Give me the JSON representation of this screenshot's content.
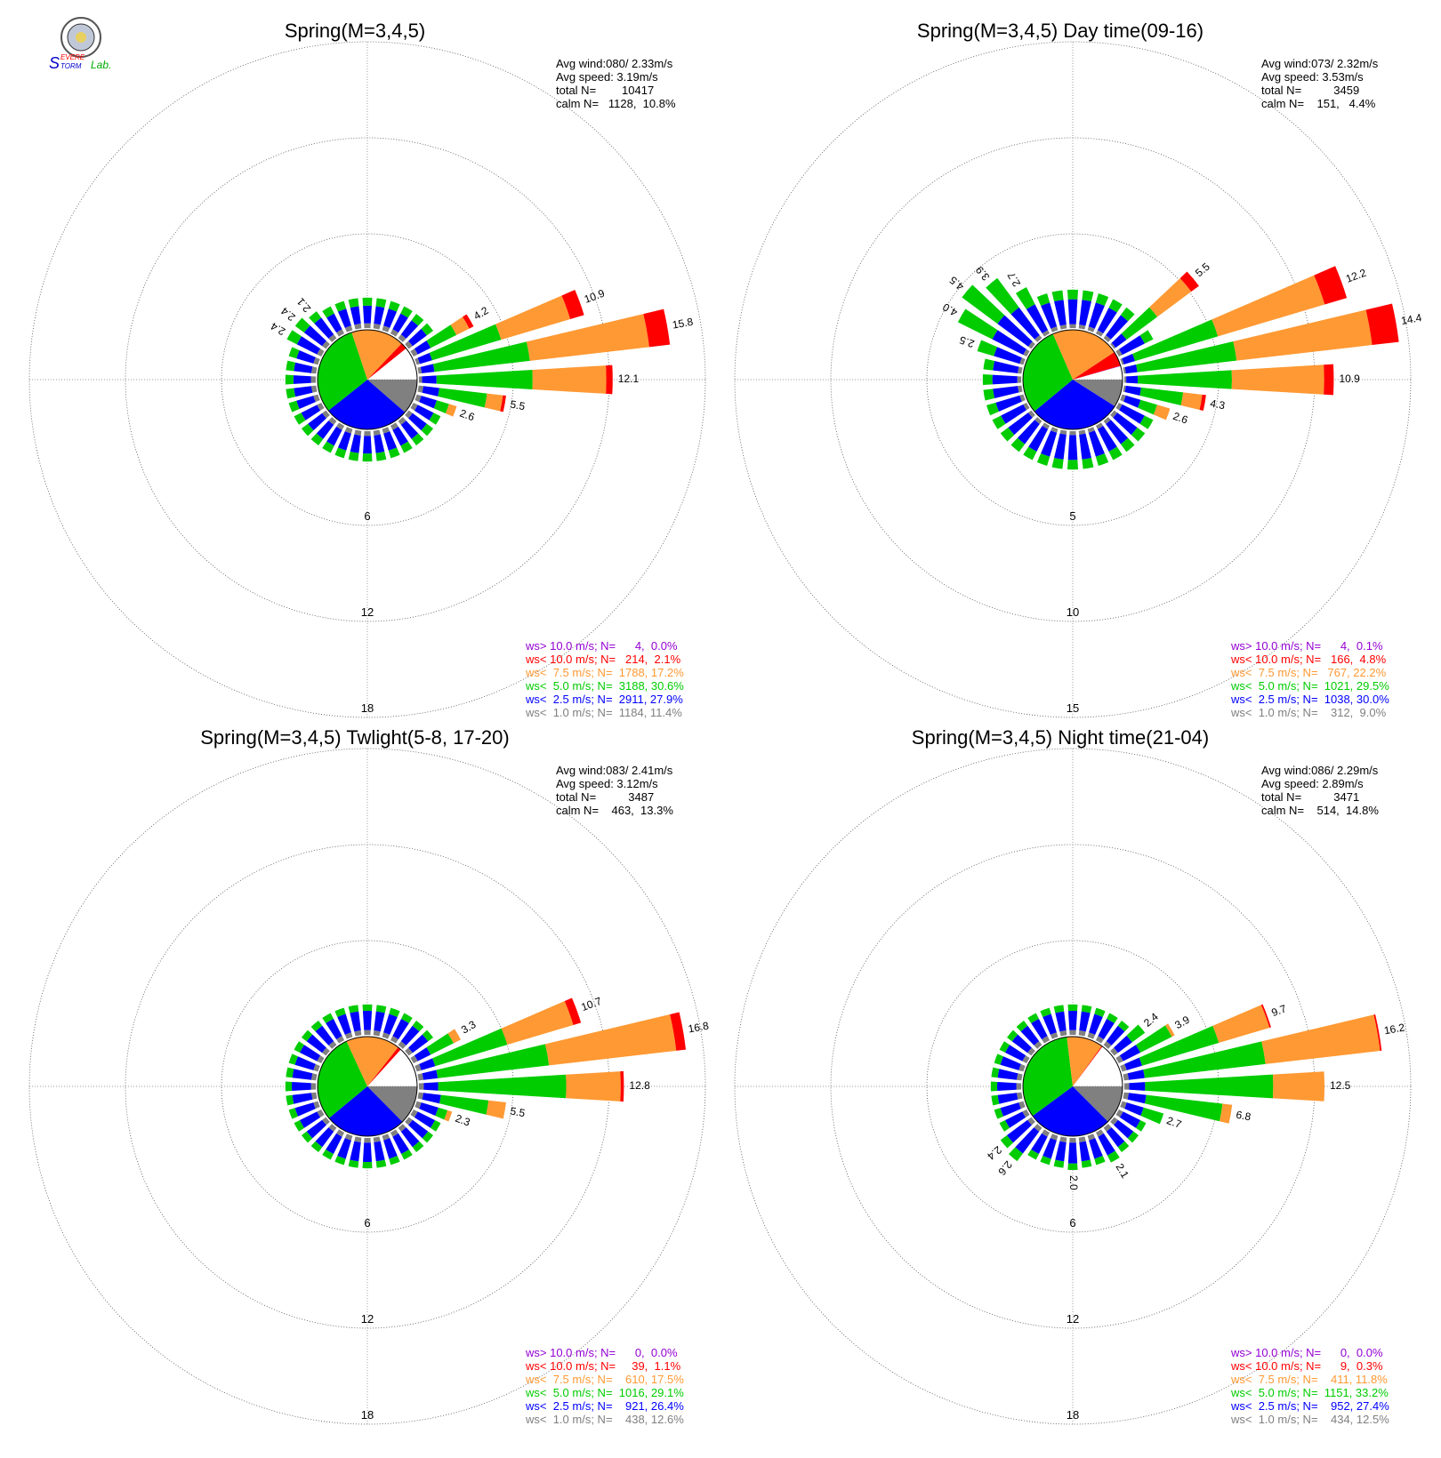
{
  "logo": {
    "text_s": "S",
    "text_evere": "EVERE",
    "text_torm": "TORM",
    "text_lab": "Lab."
  },
  "colors": {
    "gt10": "#9400d3",
    "lt10": "#ff0000",
    "lt75": "#ff9933",
    "lt50": "#00cc00",
    "lt25": "#0000ff",
    "lt10calm": "#808080",
    "calm_pie_bg": "#ffffff"
  },
  "chart_data": [
    {
      "type": "wind-rose",
      "title": "Spring(M=3,4,5)",
      "stats": [
        "Avg wind:080/ 2.33m/s",
        "Avg speed: 3.19m/s",
        "total N=        10417",
        "calm N=   1128,  10.8%"
      ],
      "ring_labels": [
        "6",
        "12",
        "18"
      ],
      "ring_max": 18,
      "pie": [
        11.4,
        27.9,
        30.6,
        17.2,
        2.1,
        0.0
      ],
      "legend": [
        {
          "label": "ws> 10.0 m/s; N=      4,  0.0%",
          "color": "gt10"
        },
        {
          "label": "ws< 10.0 m/s; N=   214,  2.1%",
          "color": "lt10"
        },
        {
          "label": "ws<  7.5 m/s; N=  1788, 17.2%",
          "color": "lt75"
        },
        {
          "label": "ws<  5.0 m/s; N=  3188, 30.6%",
          "color": "lt50"
        },
        {
          "label": "ws<  2.5 m/s; N=  2911, 27.9%",
          "color": "lt25"
        },
        {
          "label": "ws<  1.0 m/s; N=  1184, 11.4%",
          "color": "lt10calm"
        }
      ],
      "petals": [
        {
          "dir": 60,
          "total": 4.2,
          "label": "4.2",
          "parts": [
            0.3,
            0.9,
            1.8,
            0.9,
            0.3
          ]
        },
        {
          "dir": 70,
          "total": 10.9,
          "label": "10.9",
          "parts": [
            0.2,
            0.8,
            4.5,
            4.5,
            0.9
          ]
        },
        {
          "dir": 80,
          "total": 15.8,
          "label": "15.8",
          "parts": [
            0.2,
            0.8,
            6.0,
            7.5,
            1.3
          ]
        },
        {
          "dir": 90,
          "total": 12.1,
          "label": "12.1",
          "parts": [
            0.2,
            0.9,
            6.0,
            4.6,
            0.4
          ]
        },
        {
          "dir": 100,
          "total": 5.5,
          "label": "5.5",
          "parts": [
            0.3,
            1.0,
            3.0,
            1.0,
            0.2
          ]
        },
        {
          "dir": 110,
          "total": 2.6,
          "label": "2.6",
          "parts": [
            0.3,
            1.0,
            0.8,
            0.5
          ]
        },
        {
          "dir": 300,
          "total": 2.4,
          "label": "2.4",
          "parts": [
            0.3,
            1.4,
            0.7
          ]
        },
        {
          "dir": 310,
          "total": 2.4,
          "label": "2.4",
          "parts": [
            0.3,
            1.4,
            0.7
          ]
        },
        {
          "dir": 320,
          "total": 2.1,
          "label": "2.1",
          "parts": [
            0.3,
            1.3,
            0.5
          ]
        }
      ],
      "base_petal": [
        0.3,
        1.1,
        0.5
      ]
    },
    {
      "type": "wind-rose",
      "title": "Spring(M=3,4,5) Day time(09-16)",
      "stats": [
        "Avg wind:073/ 2.32m/s",
        "Avg speed: 3.53m/s",
        "total N=          3459",
        "calm N=    151,   4.4%"
      ],
      "ring_labels": [
        "5",
        "10",
        "15"
      ],
      "ring_max": 15,
      "pie": [
        9.0,
        30.0,
        29.5,
        22.2,
        4.8,
        0.1
      ],
      "legend": [
        {
          "label": "ws> 10.0 m/s; N=      4,  0.1%",
          "color": "gt10"
        },
        {
          "label": "ws< 10.0 m/s; N=   166,  4.8%",
          "color": "lt10"
        },
        {
          "label": "ws<  7.5 m/s; N=   767, 22.2%",
          "color": "lt75"
        },
        {
          "label": "ws<  5.0 m/s; N=  1021, 29.5%",
          "color": "lt50"
        },
        {
          "label": "ws<  2.5 m/s; N=  1038, 30.0%",
          "color": "lt25"
        },
        {
          "label": "ws<  1.0 m/s; N=    312,  9.0%",
          "color": "lt10calm"
        }
      ],
      "petals": [
        {
          "dir": 50,
          "total": 5.5,
          "label": "5.5",
          "parts": [
            0.1,
            0.7,
            2.0,
            2.2,
            0.5
          ]
        },
        {
          "dir": 70,
          "total": 12.2,
          "label": "12.2",
          "parts": [
            0.1,
            0.6,
            4.5,
            5.8,
            1.2
          ]
        },
        {
          "dir": 80,
          "total": 14.4,
          "label": "14.4",
          "parts": [
            0.1,
            0.6,
            5.2,
            7.1,
            1.4
          ]
        },
        {
          "dir": 90,
          "total": 10.9,
          "label": "10.9",
          "parts": [
            0.1,
            0.6,
            4.9,
            4.8,
            0.5
          ]
        },
        {
          "dir": 100,
          "total": 4.3,
          "label": "4.3",
          "parts": [
            0.1,
            0.8,
            2.2,
            1.0,
            0.2
          ]
        },
        {
          "dir": 110,
          "total": 2.6,
          "label": "2.6",
          "parts": [
            0.2,
            0.8,
            0.9,
            0.7
          ]
        },
        {
          "dir": 290,
          "total": 2.5,
          "label": "2.5",
          "parts": [
            0.2,
            1.4,
            0.9
          ]
        },
        {
          "dir": 300,
          "total": 4.0,
          "label": "4.0",
          "parts": [
            0.2,
            1.8,
            2.0
          ]
        },
        {
          "dir": 310,
          "total": 4.5,
          "label": "4.5",
          "parts": [
            0.2,
            2.0,
            2.3
          ]
        },
        {
          "dir": 320,
          "total": 3.9,
          "label": "3.9",
          "parts": [
            0.2,
            1.8,
            1.9
          ]
        },
        {
          "dir": 330,
          "total": 2.7,
          "label": "2.7",
          "parts": [
            0.2,
            1.5,
            1.0
          ]
        }
      ],
      "base_petal": [
        0.2,
        1.3,
        0.5
      ]
    },
    {
      "type": "wind-rose",
      "title": "Spring(M=3,4,5) Twlight(5-8, 17-20)",
      "stats": [
        "Avg wind:083/ 2.41m/s",
        "Avg speed: 3.12m/s",
        "total N=          3487",
        "calm N=    463,  13.3%"
      ],
      "ring_labels": [
        "6",
        "12",
        "18"
      ],
      "ring_max": 18,
      "pie": [
        12.6,
        26.4,
        29.1,
        17.5,
        1.1,
        0.0
      ],
      "legend": [
        {
          "label": "ws> 10.0 m/s; N=      0,  0.0%",
          "color": "gt10"
        },
        {
          "label": "ws< 10.0 m/s; N=     39,  1.1%",
          "color": "lt10"
        },
        {
          "label": "ws<  7.5 m/s; N=    610, 17.5%",
          "color": "lt75"
        },
        {
          "label": "ws<  5.0 m/s; N=  1016, 29.1%",
          "color": "lt50"
        },
        {
          "label": "ws<  2.5 m/s; N=    921, 26.4%",
          "color": "lt25"
        },
        {
          "label": "ws<  1.0 m/s; N=    438, 12.6%",
          "color": "lt10calm"
        }
      ],
      "petals": [
        {
          "dir": 60,
          "total": 3.3,
          "label": "3.3",
          "parts": [
            0.3,
            0.9,
            1.6,
            0.5
          ]
        },
        {
          "dir": 70,
          "total": 10.7,
          "label": "10.7",
          "parts": [
            0.3,
            0.9,
            4.7,
            4.3,
            0.5
          ]
        },
        {
          "dir": 80,
          "total": 16.8,
          "label": "16.8",
          "parts": [
            0.3,
            0.9,
            7.0,
            8.0,
            0.6
          ]
        },
        {
          "dir": 90,
          "total": 12.8,
          "label": "12.8",
          "parts": [
            0.3,
            0.9,
            8.0,
            3.4,
            0.2
          ]
        },
        {
          "dir": 100,
          "total": 5.5,
          "label": "5.5",
          "parts": [
            0.3,
            1.1,
            3.0,
            1.1
          ]
        },
        {
          "dir": 110,
          "total": 2.3,
          "label": "2.3",
          "parts": [
            0.3,
            1.1,
            0.6,
            0.3
          ]
        }
      ],
      "base_petal": [
        0.3,
        1.2,
        0.4
      ]
    },
    {
      "type": "wind-rose",
      "title": "Spring(M=3,4,5) Night time(21-04)",
      "stats": [
        "Avg wind:086/ 2.29m/s",
        "Avg speed: 2.89m/s",
        "total N=          3471",
        "calm N=    514,  14.8%"
      ],
      "ring_labels": [
        "6",
        "12",
        "18"
      ],
      "ring_max": 18,
      "pie": [
        12.5,
        27.4,
        33.2,
        11.8,
        0.3,
        0.0
      ],
      "legend": [
        {
          "label": "ws> 10.0 m/s; N=      0,  0.0%",
          "color": "gt10"
        },
        {
          "label": "ws< 10.0 m/s; N=      9,  0.3%",
          "color": "lt10"
        },
        {
          "label": "ws<  7.5 m/s; N=    411, 11.8%",
          "color": "lt75"
        },
        {
          "label": "ws<  5.0 m/s; N=  1151, 33.2%",
          "color": "lt50"
        },
        {
          "label": "ws<  2.5 m/s; N=    952, 27.4%",
          "color": "lt25"
        },
        {
          "label": "ws<  1.0 m/s; N=    434, 12.5%",
          "color": "lt10calm"
        }
      ],
      "petals": [
        {
          "dir": 50,
          "total": 2.4,
          "label": "2.4",
          "parts": [
            0.3,
            1.1,
            1.0
          ]
        },
        {
          "dir": 60,
          "total": 3.9,
          "label": "3.9",
          "parts": [
            0.3,
            1.2,
            2.2,
            0.2
          ]
        },
        {
          "dir": 70,
          "total": 9.7,
          "label": "9.7",
          "parts": [
            0.3,
            1.0,
            5.0,
            3.3,
            0.1
          ]
        },
        {
          "dir": 80,
          "total": 16.2,
          "label": "16.2",
          "parts": [
            0.3,
            1.0,
            7.6,
            7.2,
            0.1
          ]
        },
        {
          "dir": 90,
          "total": 12.5,
          "label": "12.5",
          "parts": [
            0.3,
            1.0,
            8.0,
            3.2
          ]
        },
        {
          "dir": 100,
          "total": 6.8,
          "label": "6.8",
          "parts": [
            0.3,
            1.1,
            4.8,
            0.6
          ]
        },
        {
          "dir": 110,
          "total": 2.7,
          "label": "2.7",
          "parts": [
            0.3,
            1.1,
            1.3
          ]
        },
        {
          "dir": 150,
          "total": 2.1,
          "label": "2.1",
          "parts": [
            0.3,
            1.3,
            0.5
          ]
        },
        {
          "dir": 180,
          "total": 2.0,
          "label": "2.0",
          "parts": [
            0.3,
            1.3,
            0.4
          ]
        },
        {
          "dir": 220,
          "total": 2.6,
          "label": "2.6",
          "parts": [
            0.3,
            1.7,
            0.6
          ]
        },
        {
          "dir": 230,
          "total": 2.4,
          "label": "2.4",
          "parts": [
            0.3,
            1.6,
            0.5
          ]
        }
      ],
      "base_petal": [
        0.3,
        1.2,
        0.4
      ]
    }
  ]
}
